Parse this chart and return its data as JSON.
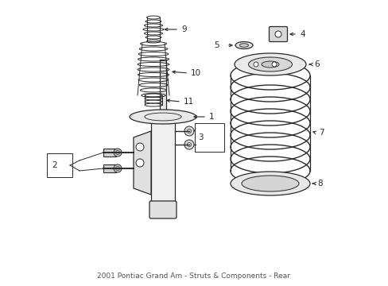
{
  "bg_color": "#ffffff",
  "line_color": "#2a2a2a",
  "lw": 0.9,
  "figsize": [
    4.89,
    3.6
  ],
  "dpi": 100
}
